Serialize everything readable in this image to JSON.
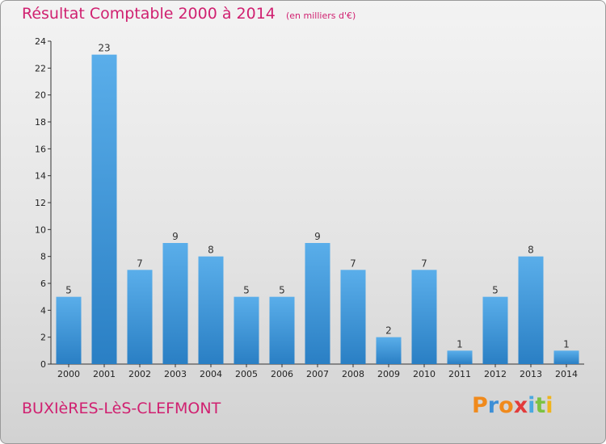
{
  "title": "Résultat Comptable 2000 à 2014",
  "subtitle": "(en milliers d'€)",
  "town": "BUXIèRES-LèS-CLEFMONT",
  "logo": {
    "letters": [
      "P",
      "r",
      "o",
      "x",
      "i",
      "t",
      "i"
    ],
    "colors": [
      "#f08a1c",
      "#3d8fd6",
      "#f08a1c",
      "#e23b3b",
      "#4aa8e0",
      "#7cc242",
      "#f0b41c"
    ]
  },
  "colors": {
    "title": "#d02070",
    "bar_light": "#5aaeea",
    "bar_dark": "#2a7fc4"
  },
  "chart_data": {
    "type": "bar",
    "categories": [
      "2000",
      "2001",
      "2002",
      "2003",
      "2004",
      "2005",
      "2006",
      "2007",
      "2008",
      "2009",
      "2010",
      "2011",
      "2012",
      "2013",
      "2014"
    ],
    "values": [
      5,
      23,
      7,
      9,
      8,
      5,
      5,
      9,
      7,
      2,
      7,
      1,
      5,
      8,
      1
    ],
    "ylim": [
      0,
      24
    ],
    "yticks": [
      0,
      2,
      4,
      6,
      8,
      10,
      12,
      14,
      16,
      18,
      20,
      22,
      24
    ],
    "grid": false,
    "title": "Résultat Comptable 2000 à 2014",
    "subtitle": "(en milliers d'€)",
    "xlabel": "",
    "ylabel": ""
  }
}
